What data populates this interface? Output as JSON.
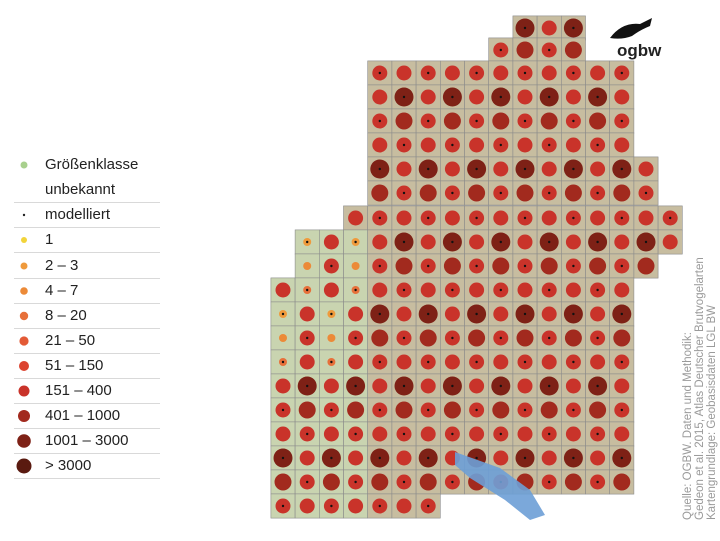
{
  "legend": {
    "items": [
      {
        "label": "Größenklasse",
        "label2": "unbekannt",
        "color": "#a8d08d"
      },
      {
        "label": "modelliert",
        "color": "#222222"
      },
      {
        "label": "1",
        "color": "#f2d43a"
      },
      {
        "label": "2 – 3",
        "color": "#ef9a3c"
      },
      {
        "label": "4 – 7",
        "color": "#ec8a38"
      },
      {
        "label": "8 – 20",
        "color": "#e7703a"
      },
      {
        "label": "21 – 50",
        "color": "#e35a36"
      },
      {
        "label": "51 – 150",
        "color": "#dc4430"
      },
      {
        "label": "151 – 400",
        "color": "#c9332a"
      },
      {
        "label": "401 – 1000",
        "color": "#a22a1e"
      },
      {
        "label": "1001 – 3000",
        "color": "#7e2116"
      },
      {
        "label": "> 3000",
        "color": "#5a1a10"
      }
    ]
  },
  "logo": "ogbw",
  "source": [
    "Quelle: OGBW. Daten und Methodik:",
    "Gedeon et al. 2015, Atlas Deutscher Brutvogelarten",
    "Kartengrundlage: Geobasisdaten LGL BW"
  ]
}
